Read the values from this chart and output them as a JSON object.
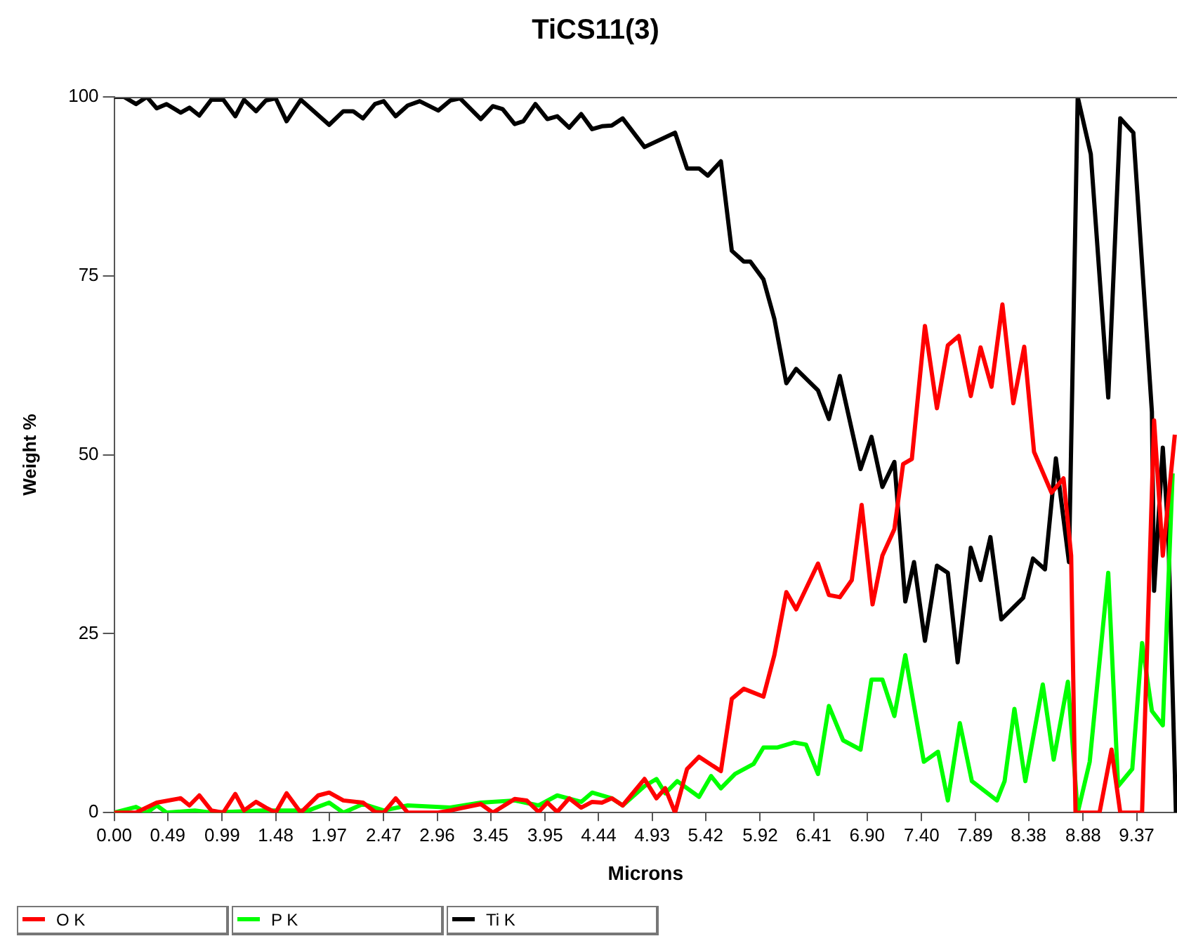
{
  "chart_data": {
    "type": "line",
    "title": "TiCS11(3)",
    "xlabel": "Microns",
    "ylabel": "Weight %",
    "xlim": [
      0,
      9.74
    ],
    "ylim": [
      0,
      100
    ],
    "xticks": [
      {
        "value": 0,
        "label": "0.00"
      },
      {
        "value": 0.49,
        "label": "0.49"
      },
      {
        "value": 0.99,
        "label": "0.99"
      },
      {
        "value": 1.48,
        "label": "1.48"
      },
      {
        "value": 1.97,
        "label": "1.97"
      },
      {
        "value": 2.47,
        "label": "2.47"
      },
      {
        "value": 2.96,
        "label": "2.96"
      },
      {
        "value": 3.45,
        "label": "3.45"
      },
      {
        "value": 3.95,
        "label": "3.95"
      },
      {
        "value": 4.44,
        "label": "4.44"
      },
      {
        "value": 4.93,
        "label": "4.93"
      },
      {
        "value": 5.42,
        "label": "5.42"
      },
      {
        "value": 5.92,
        "label": "5.92"
      },
      {
        "value": 6.41,
        "label": "6.41"
      },
      {
        "value": 6.9,
        "label": "6.90"
      },
      {
        "value": 7.4,
        "label": "7.40"
      },
      {
        "value": 7.89,
        "label": "7.89"
      },
      {
        "value": 8.38,
        "label": "8.38"
      },
      {
        "value": 8.88,
        "label": "8.88"
      },
      {
        "value": 9.37,
        "label": "9.37"
      }
    ],
    "yticks": [
      0,
      25,
      50,
      75,
      100
    ],
    "grid": false,
    "legend": "bottom left",
    "marker": "none",
    "line_style": "solid",
    "series": [
      {
        "name": "O K",
        "color": "#ff0000",
        "x": [
          0,
          0.2,
          0.39,
          0.61,
          0.69,
          0.78,
          0.89,
          1.0,
          1.11,
          1.19,
          1.3,
          1.39,
          1.48,
          1.58,
          1.71,
          1.87,
          1.97,
          2.1,
          2.28,
          2.39,
          2.47,
          2.58,
          2.69,
          2.97,
          3.08,
          3.36,
          3.47,
          3.67,
          3.78,
          3.89,
          3.97,
          4.06,
          4.17,
          4.28,
          4.38,
          4.47,
          4.56,
          4.66,
          4.86,
          4.97,
          5.05,
          5.14,
          5.25,
          5.36,
          5.56,
          5.66,
          5.77,
          5.95,
          6.05,
          6.16,
          6.25,
          6.45,
          6.55,
          6.65,
          6.76,
          6.85,
          6.95,
          7.04,
          7.15,
          7.23,
          7.31,
          7.43,
          7.54,
          7.64,
          7.74,
          7.85,
          7.94,
          8.04,
          8.14,
          8.24,
          8.34,
          8.43,
          8.59,
          8.7,
          8.77,
          8.81,
          9.03,
          9.14,
          9.22,
          9.42,
          9.53,
          9.61,
          9.72
        ],
        "values": [
          0,
          0,
          1.4,
          2,
          1,
          2.4,
          0.3,
          0,
          2.6,
          0.3,
          1.5,
          0.7,
          0,
          2.7,
          0,
          2.4,
          2.8,
          1.7,
          1.4,
          0.1,
          0,
          2,
          0,
          0,
          0.3,
          1.2,
          0,
          1.9,
          1.7,
          0.1,
          1.4,
          0.1,
          2,
          0.7,
          1.5,
          1.4,
          2,
          1,
          4.7,
          2,
          3.4,
          0,
          6.1,
          7.8,
          5.8,
          15.9,
          17.3,
          16.2,
          22,
          30.8,
          28.4,
          34.8,
          30.4,
          30.1,
          32.5,
          43,
          29.1,
          35.9,
          39.6,
          48.7,
          49.4,
          68,
          56.5,
          65.3,
          66.6,
          58.2,
          65,
          59.5,
          71,
          57.2,
          65.1,
          50.4,
          44.7,
          46.7,
          35.9,
          0,
          0,
          8.8,
          0,
          0,
          54.8,
          35.9,
          52.8
        ]
      },
      {
        "name": "P K",
        "color": "#00ff00",
        "x": [
          0,
          0.2,
          0.3,
          0.39,
          0.48,
          0.74,
          0.89,
          1.35,
          1.78,
          1.97,
          2.1,
          2.28,
          2.47,
          2.69,
          3.08,
          3.36,
          3.67,
          3.89,
          4.06,
          4.28,
          4.38,
          4.56,
          4.66,
          4.86,
          4.97,
          5.05,
          5.16,
          5.36,
          5.47,
          5.56,
          5.69,
          5.86,
          5.95,
          6.08,
          6.23,
          6.34,
          6.45,
          6.55,
          6.68,
          6.84,
          6.94,
          7.04,
          7.15,
          7.25,
          7.33,
          7.42,
          7.55,
          7.64,
          7.75,
          7.86,
          8.09,
          8.16,
          8.25,
          8.35,
          8.51,
          8.61,
          8.74,
          8.83,
          8.94,
          9.11,
          9.2,
          9.33,
          9.42,
          9.51,
          9.61,
          9.7
        ],
        "values": [
          0,
          0.8,
          0,
          1,
          0,
          0.3,
          0,
          0.3,
          0.3,
          1.4,
          0,
          1.2,
          0.3,
          1,
          0.7,
          1.4,
          1.7,
          1,
          2.4,
          1.5,
          2.8,
          2,
          1,
          3.7,
          4.7,
          2.7,
          4.4,
          2.2,
          5.1,
          3.4,
          5.4,
          6.8,
          9.1,
          9.1,
          9.8,
          9.5,
          5.4,
          14.9,
          10.1,
          8.8,
          18.6,
          18.6,
          13.5,
          22,
          14.9,
          7.1,
          8.5,
          1.7,
          12.5,
          4.4,
          1.7,
          4.4,
          14.5,
          4.4,
          17.9,
          7.4,
          18.3,
          0,
          7.1,
          33.5,
          3.7,
          6.1,
          23.7,
          14.2,
          12.2,
          47.4
        ]
      },
      {
        "name": "Ti K",
        "color": "#000000",
        "x": [
          0,
          0.09,
          0.2,
          0.3,
          0.39,
          0.48,
          0.61,
          0.69,
          0.78,
          0.89,
          1.0,
          1.11,
          1.19,
          1.3,
          1.39,
          1.48,
          1.58,
          1.71,
          1.97,
          2.1,
          2.19,
          2.28,
          2.39,
          2.47,
          2.58,
          2.69,
          2.8,
          2.97,
          3.08,
          3.17,
          3.36,
          3.47,
          3.56,
          3.67,
          3.75,
          3.86,
          3.97,
          4.06,
          4.17,
          4.28,
          4.38,
          4.47,
          4.56,
          4.66,
          4.86,
          5.14,
          5.25,
          5.36,
          5.44,
          5.56,
          5.66,
          5.77,
          5.83,
          5.95,
          6.05,
          6.16,
          6.25,
          6.45,
          6.55,
          6.65,
          6.84,
          6.94,
          7.04,
          7.15,
          7.25,
          7.33,
          7.43,
          7.54,
          7.64,
          7.73,
          7.85,
          7.94,
          8.03,
          8.13,
          8.33,
          8.42,
          8.53,
          8.63,
          8.75,
          8.83,
          8.95,
          9.11,
          9.22,
          9.34,
          9.51,
          9.53,
          9.61,
          9.66,
          9.73
        ],
        "values": [
          100,
          100,
          99,
          100,
          98.4,
          99,
          97.8,
          98.5,
          97.4,
          99.6,
          99.6,
          97.3,
          99.6,
          98,
          99.5,
          99.8,
          96.6,
          99.6,
          96.1,
          98,
          98,
          97,
          99,
          99.4,
          97.3,
          98.8,
          99.4,
          98.1,
          99.5,
          99.8,
          96.9,
          98.7,
          98.3,
          96.2,
          96.6,
          99,
          96.9,
          97.3,
          95.7,
          97.6,
          95.5,
          95.9,
          96,
          97,
          93,
          95,
          90,
          90,
          89,
          91,
          78.5,
          77,
          77,
          74.5,
          69,
          60,
          62,
          59,
          55,
          61,
          48,
          52.5,
          45.5,
          49,
          29.5,
          35,
          24,
          34.5,
          33.5,
          21,
          37,
          32.5,
          38.5,
          27,
          30,
          35.5,
          34,
          49.5,
          35,
          100,
          92,
          58,
          97,
          95,
          56,
          31,
          51,
          39,
          0
        ]
      }
    ]
  }
}
